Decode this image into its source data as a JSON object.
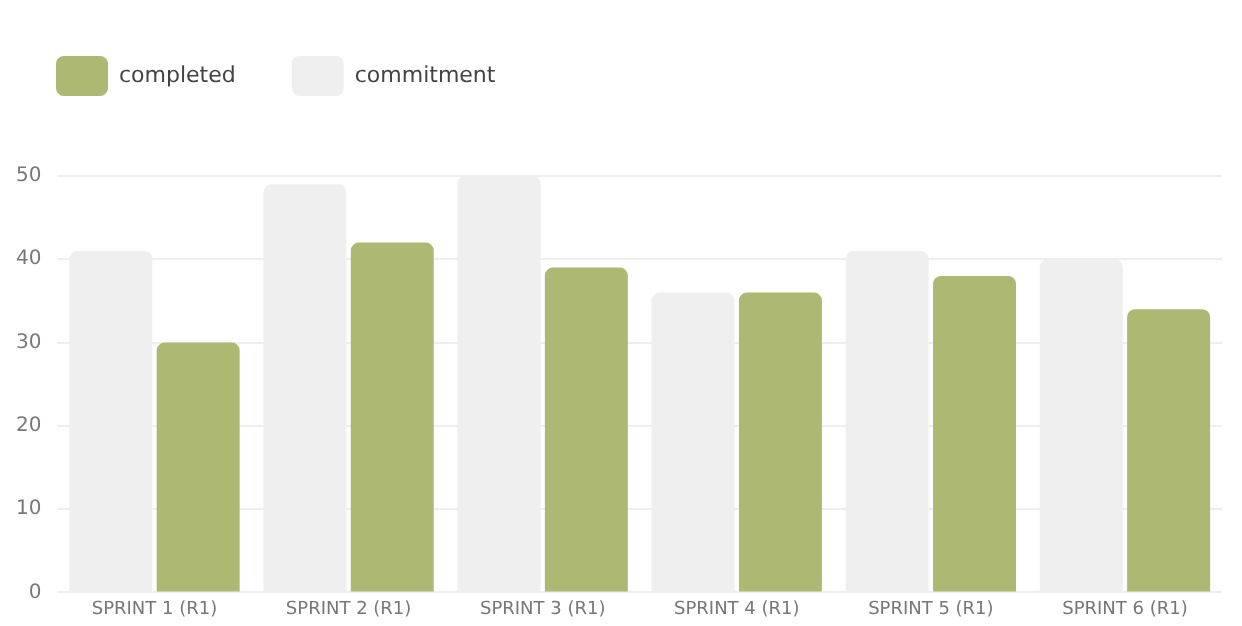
{
  "chart_data": {
    "type": "bar",
    "categories": [
      "SPRINT 1 (R1)",
      "SPRINT 2 (R1)",
      "SPRINT 3 (R1)",
      "SPRINT 4 (R1)",
      "SPRINT 5 (R1)",
      "SPRINT 6 (R1)"
    ],
    "series": [
      {
        "name": "commitment",
        "color": "#efefef",
        "values": [
          41,
          49,
          50,
          36,
          41,
          40
        ]
      },
      {
        "name": "completed",
        "color": "#adb872",
        "values": [
          30,
          42,
          39,
          36,
          38,
          34
        ]
      }
    ],
    "ylim": [
      0,
      50
    ],
    "yticks": [
      0,
      10,
      20,
      30,
      40,
      50
    ],
    "grid": "y",
    "legend": "top left"
  }
}
